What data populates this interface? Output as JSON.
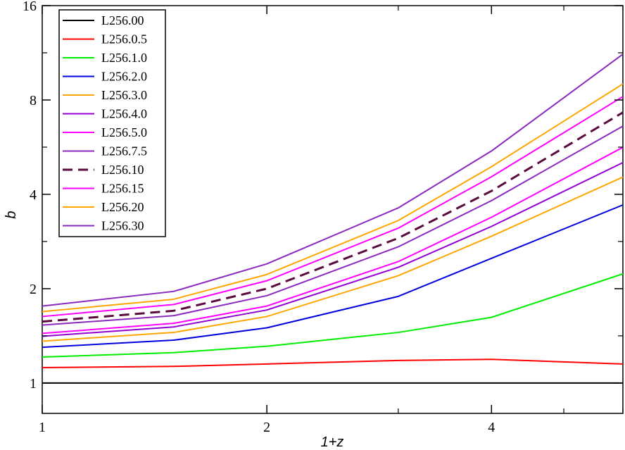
{
  "chart_data": {
    "type": "line",
    "title": "",
    "xlabel": "1+z",
    "ylabel": "b",
    "x_scale": "log",
    "y_scale": "log",
    "xlim": [
      1,
      6
    ],
    "ylim": [
      0.8,
      16
    ],
    "xticks": [
      1,
      2,
      4
    ],
    "xtick_labels": [
      "1",
      "2",
      "4"
    ],
    "yticks": [
      1,
      2,
      4,
      8,
      16
    ],
    "ytick_labels": [
      "1",
      "2",
      "4",
      "8",
      "16"
    ],
    "grid": false,
    "legend_position": "top-left",
    "x": [
      1,
      1.5,
      2,
      3,
      4,
      6
    ],
    "series": [
      {
        "name": "L256.00",
        "color": "#000000",
        "dashed": false,
        "values": [
          1.0,
          1.0,
          1.0,
          1.0,
          1.0,
          1.0
        ]
      },
      {
        "name": "L256.0.5",
        "color": "#ff0000",
        "dashed": false,
        "values": [
          1.12,
          1.13,
          1.15,
          1.18,
          1.19,
          1.15
        ]
      },
      {
        "name": "L256.1.0",
        "color": "#00ee00",
        "dashed": false,
        "values": [
          1.21,
          1.25,
          1.31,
          1.45,
          1.62,
          2.23
        ]
      },
      {
        "name": "L256.2.0",
        "color": "#0000dd",
        "dashed": false,
        "values": [
          1.3,
          1.37,
          1.5,
          1.89,
          2.5,
          3.7
        ]
      },
      {
        "name": "L256.3.0",
        "color": "#ffa500",
        "dashed": false,
        "values": [
          1.36,
          1.45,
          1.63,
          2.2,
          2.94,
          4.54
        ]
      },
      {
        "name": "L256.4.0",
        "color": "#9400d3",
        "dashed": false,
        "values": [
          1.41,
          1.51,
          1.71,
          2.34,
          3.16,
          5.05
        ]
      },
      {
        "name": "L256.5.0",
        "color": "#ff00ff",
        "dashed": false,
        "values": [
          1.44,
          1.55,
          1.76,
          2.44,
          3.38,
          5.65
        ]
      },
      {
        "name": "L256.7.5",
        "color": "#8b2abf",
        "dashed": false,
        "values": [
          1.53,
          1.64,
          1.9,
          2.72,
          3.82,
          6.6
        ]
      },
      {
        "name": "L256.10",
        "color": "#5a0a3c",
        "dashed": true,
        "values": [
          1.57,
          1.7,
          2.0,
          2.9,
          4.1,
          7.3
        ]
      },
      {
        "name": "L256.15",
        "color": "#ff00ff",
        "dashed": false,
        "values": [
          1.63,
          1.78,
          2.12,
          3.12,
          4.55,
          8.2
        ]
      },
      {
        "name": "L256.20",
        "color": "#ffa500",
        "dashed": false,
        "values": [
          1.69,
          1.85,
          2.22,
          3.3,
          4.9,
          9.0
        ]
      },
      {
        "name": "L256.30",
        "color": "#8b2abf",
        "dashed": false,
        "values": [
          1.76,
          1.96,
          2.4,
          3.62,
          5.5,
          11.2
        ]
      }
    ]
  }
}
